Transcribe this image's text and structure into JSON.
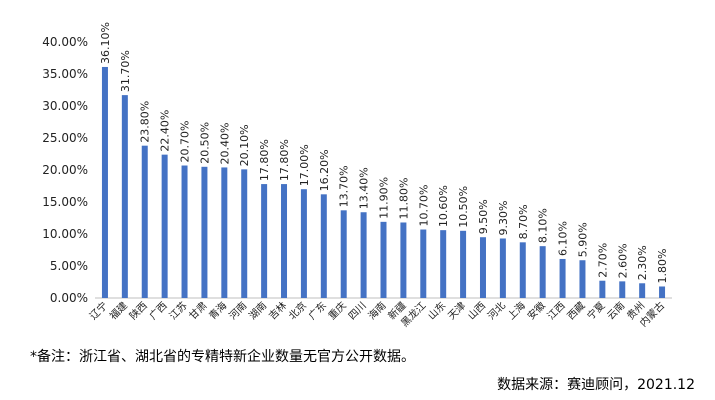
{
  "chart_data": {
    "type": "bar",
    "categories": [
      "辽宁",
      "福建",
      "陕西",
      "广西",
      "江苏",
      "甘肃",
      "青海",
      "河南",
      "湖南",
      "吉林",
      "北京",
      "广东",
      "重庆",
      "四川",
      "海南",
      "新疆",
      "黑龙江",
      "山东",
      "天津",
      "山西",
      "河北",
      "上海",
      "安徽",
      "江西",
      "西藏",
      "宁夏",
      "云南",
      "贵州",
      "内蒙古"
    ],
    "values": [
      36.1,
      31.7,
      23.8,
      22.4,
      20.7,
      20.5,
      20.4,
      20.1,
      17.8,
      17.8,
      17.0,
      16.2,
      13.7,
      13.4,
      11.9,
      11.8,
      10.7,
      10.6,
      10.5,
      9.5,
      9.3,
      8.7,
      8.1,
      6.1,
      5.9,
      2.7,
      2.6,
      2.3,
      1.8
    ],
    "data_labels": [
      "36.10%",
      "31.70%",
      "23.80%",
      "22.40%",
      "20.70%",
      "20.50%",
      "20.40%",
      "20.10%",
      "17.80%",
      "17.80%",
      "17.00%",
      "16.20%",
      "13.70%",
      "13.40%",
      "11.90%",
      "11.80%",
      "10.70%",
      "10.60%",
      "10.50%",
      "9.50%",
      "9.30%",
      "8.70%",
      "8.10%",
      "6.10%",
      "5.90%",
      "2.70%",
      "2.60%",
      "2.30%",
      "1.80%"
    ],
    "yticks": [
      "0.00%",
      "5.00%",
      "10.00%",
      "15.00%",
      "20.00%",
      "25.00%",
      "30.00%",
      "35.00%",
      "40.00%"
    ],
    "ylim": [
      0,
      40
    ],
    "bar_color": "#4472C4",
    "grid": false,
    "legend": false
  },
  "footnote": "*备注：浙江省、湖北省的专精特新企业数量无官方公开数据。",
  "source": "数据来源：赛迪顾问，2021.12"
}
